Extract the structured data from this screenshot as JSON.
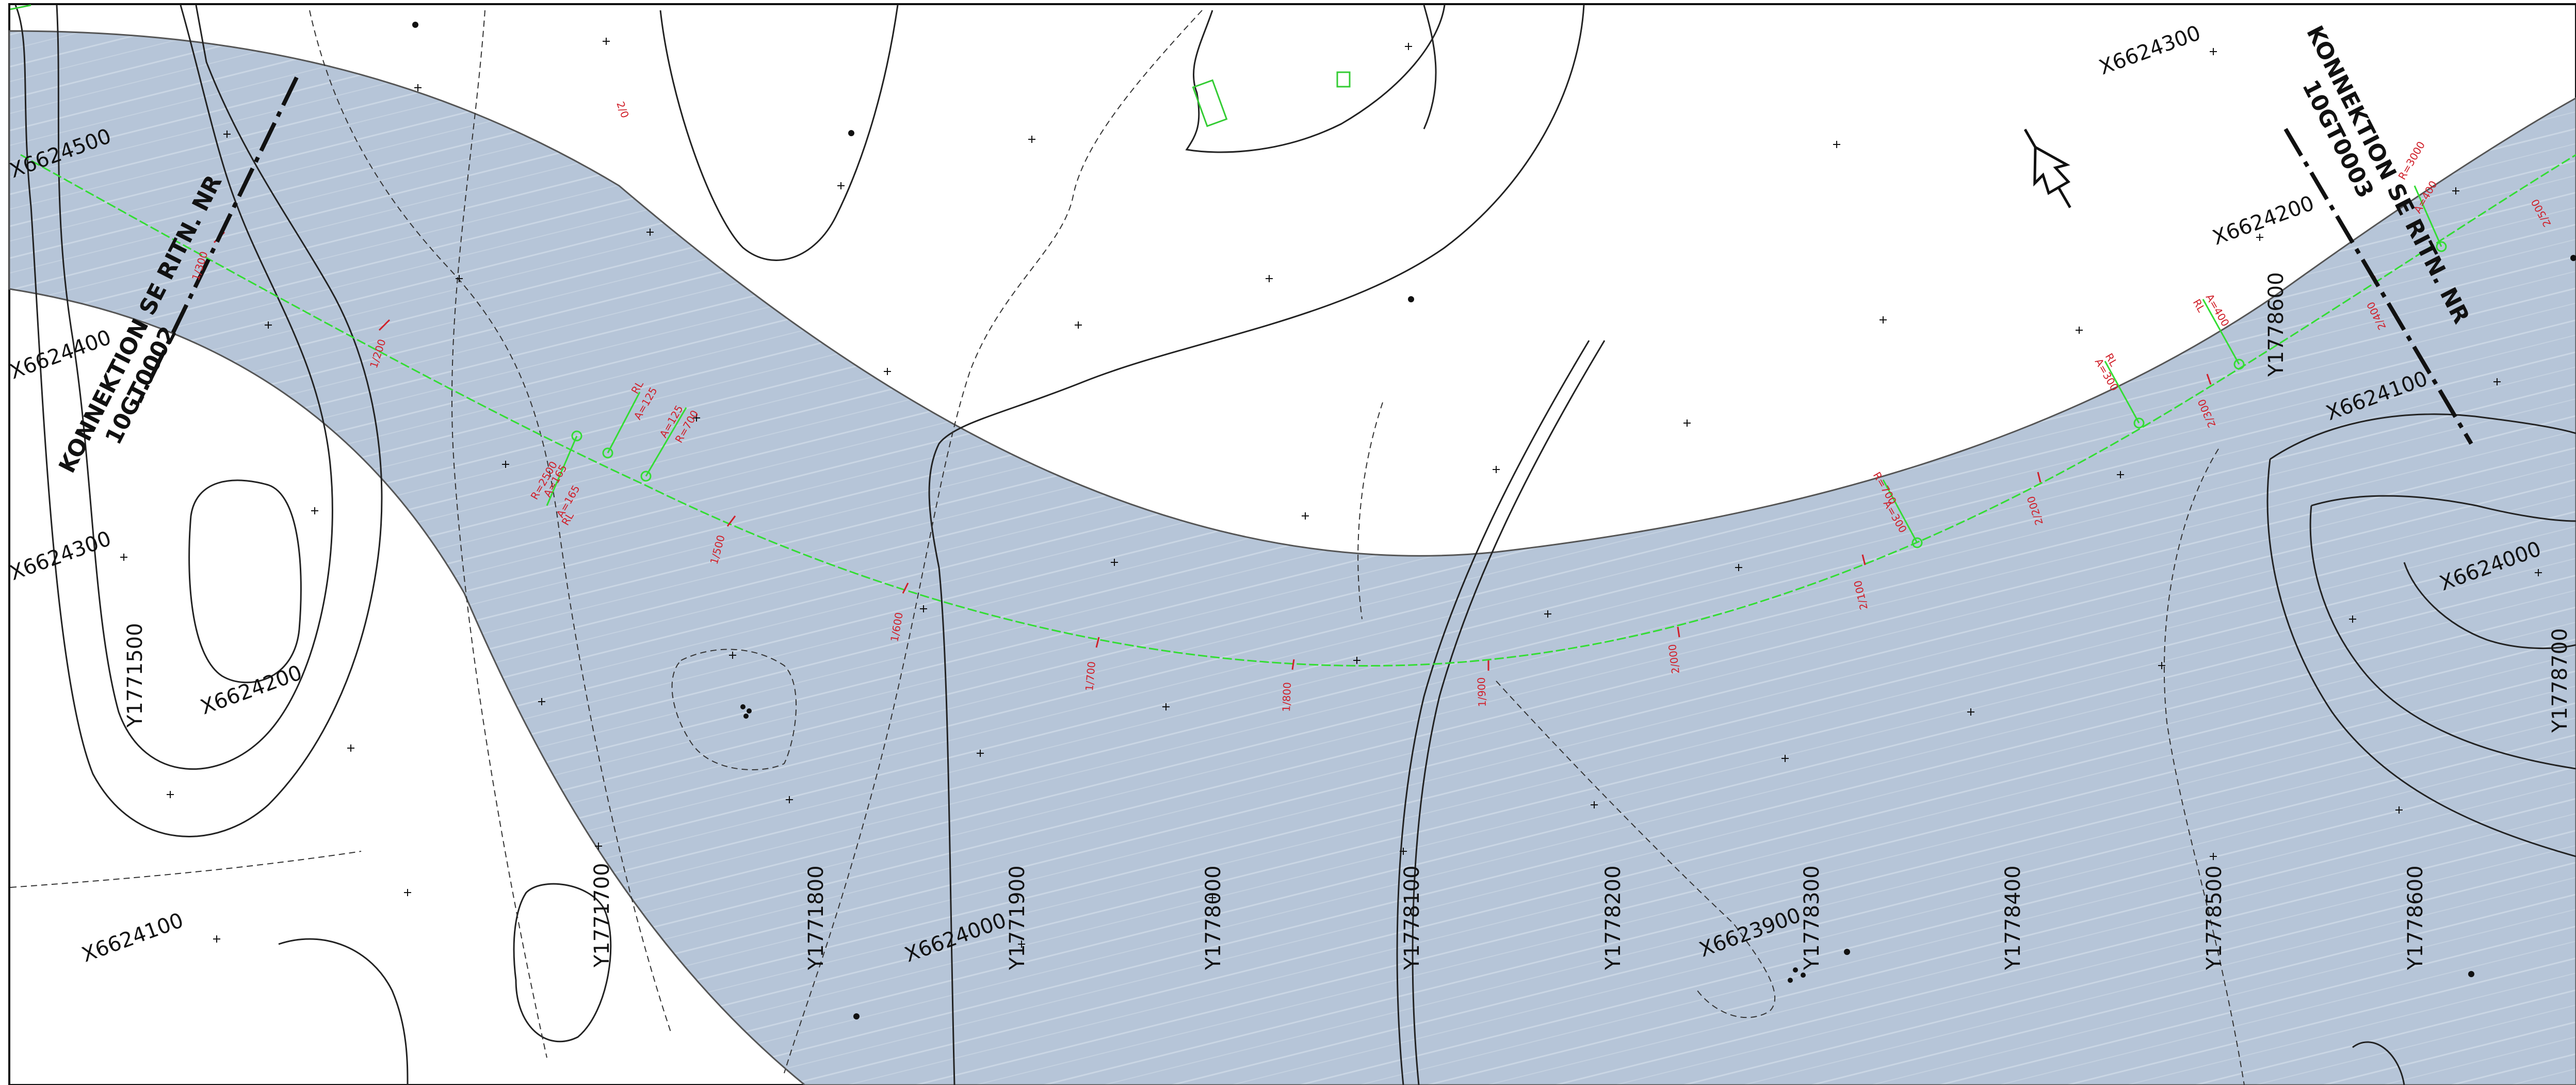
{
  "map": {
    "background": "#ffffff",
    "corridor_color": "#b6c5d8",
    "alignment_color": "#33dd33",
    "chainage_color": "#d0202a",
    "contour_color": "#222222"
  },
  "connections": {
    "left": {
      "line1": "KONNEKTION SE RITN. NR",
      "line2": "10GT0002"
    },
    "right": {
      "line1": "KONNEKTION SE RITN. NR",
      "line2": "10GT0003"
    }
  },
  "grid_x_labels": {
    "a": "X6624500",
    "b": "X6624400",
    "c": "X6624300",
    "d": "X6624200",
    "e": "X6624100",
    "f": "X6624000",
    "g": "X6623900",
    "h": "X6624300",
    "i": "X6624200",
    "j": "X6624100",
    "k": "X6624000"
  },
  "grid_y_labels": {
    "a": "Y1771500",
    "b": "Y1771700",
    "c": "Y1771800",
    "d": "Y1771900",
    "e": "Y1778000",
    "f": "Y1778100",
    "g": "Y1778200",
    "h": "Y1778300",
    "i": "Y1778400",
    "j": "Y1778500",
    "k": "Y1778600",
    "l": "Y1778600",
    "m": "Y1778700"
  },
  "chainages": {
    "a": "1/200",
    "b": "1/300",
    "c": "1/500",
    "d": "1/600",
    "e": "1/700",
    "f": "1/800",
    "g": "1/900",
    "h": "2/000",
    "i": "2/100",
    "j": "2/200",
    "k": "2/300",
    "l": "2/400",
    "m": "2/500"
  },
  "curve_labels": {
    "a": "RL",
    "b": "A=125",
    "c": "A=125",
    "d": "R=700",
    "e": "R=2500",
    "f": "A=165",
    "g": "A=165",
    "h": "RL",
    "i": "A=300",
    "j": "R=700",
    "k": "RL",
    "l": "A=300",
    "m": "A=400",
    "n": "RL",
    "o": "R=3000",
    "p": "A=400",
    "q": "2/0"
  },
  "north_arrow": "north-arrow-icon"
}
